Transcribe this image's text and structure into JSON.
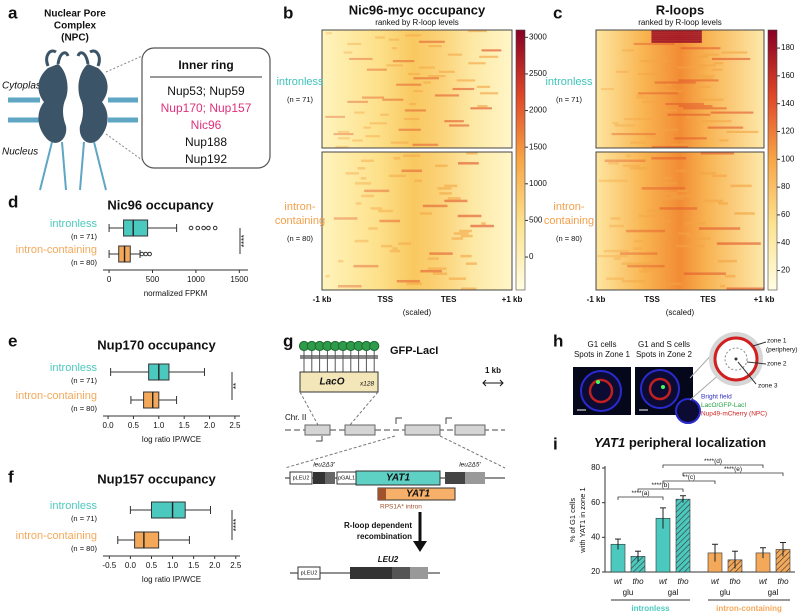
{
  "panel_labels": [
    "a",
    "b",
    "c",
    "d",
    "e",
    "f",
    "g",
    "h",
    "i"
  ],
  "npc": {
    "title_lines": [
      "Nuclear Pore",
      "Complex",
      "(NPC)"
    ],
    "cytoplasm": "Cytoplasm",
    "nucleus": "Nucleus",
    "box_title": "Inner ring",
    "items": [
      {
        "text": "Nup53; Nup59",
        "color": "#111111"
      },
      {
        "text": "Nup170; Nup157",
        "color": "#e0307a"
      },
      {
        "text": "Nic96",
        "color": "#e0307a"
      },
      {
        "text": "Nup188",
        "color": "#111111"
      },
      {
        "text": "Nup192",
        "color": "#111111"
      }
    ]
  },
  "chart_data": [
    {
      "type": "heatmap",
      "title": "Nic96-myc occupancy",
      "subtitle": "ranked by R-loop levels",
      "groups": [
        {
          "label_lines": [
            "intronless"
          ],
          "n": "(n = 71)",
          "color": "#3fc4ba"
        },
        {
          "label_lines": [
            "intron-",
            "containing"
          ],
          "n": "(n = 80)",
          "color": "#f2a04a"
        }
      ],
      "x_labels": [
        "-1 kb",
        "TSS",
        "TES",
        "+1 kb"
      ],
      "x_note": "(scaled)",
      "clim": [
        -450,
        3100
      ],
      "cticks": [
        0,
        500,
        1000,
        1500,
        2000,
        2500,
        3000
      ]
    },
    {
      "type": "heatmap",
      "title": "R-loops",
      "subtitle": "ranked by R-loop levels",
      "groups": [
        {
          "label_lines": [
            "intronless"
          ],
          "n": "(n = 71)",
          "color": "#3fc4ba"
        },
        {
          "label_lines": [
            "intron-",
            "containing"
          ],
          "n": "(n = 80)",
          "color": "#f2a04a"
        }
      ],
      "x_labels": [
        "-1 kb",
        "TSS",
        "TES",
        "+1 kb"
      ],
      "x_note": "(scaled)",
      "clim": [
        6,
        193
      ],
      "cticks": [
        20,
        40,
        60,
        80,
        100,
        120,
        140,
        160,
        180
      ]
    },
    {
      "type": "box",
      "title": "Nic96 occupancy",
      "xlabel": "normalized FPKM",
      "categories": [
        "intronless",
        "intron-containing"
      ],
      "n_labels": [
        "(n = 71)",
        "(n = 80)"
      ],
      "colors": [
        "#4cc9bf",
        "#f4a95a"
      ],
      "boxes": [
        {
          "whislo": 0,
          "q1": 167,
          "med": 278,
          "q3": 444,
          "whishi": 778,
          "fliers": [
            944,
            1022,
            1089,
            1144,
            1222
          ]
        },
        {
          "whislo": 0,
          "q1": 111,
          "med": 178,
          "q3": 244,
          "whishi": 356,
          "fliers": [
            378,
            422,
            467
          ]
        }
      ],
      "xlim": [
        -70,
        1600
      ],
      "xticks": [
        0,
        500,
        1000,
        1500
      ],
      "significance": "****"
    },
    {
      "type": "box",
      "title": "Nup170 occupancy",
      "xlabel": "log ratio IP/WCE",
      "categories": [
        "intronless",
        "intron-containing"
      ],
      "n_labels": [
        "(n = 71)",
        "(n = 80)"
      ],
      "colors": [
        "#4cc9bf",
        "#f4a95a"
      ],
      "boxes": [
        {
          "whislo": 0.05,
          "q1": 0.8,
          "med": 1.0,
          "q3": 1.2,
          "whishi": 1.9,
          "fliers": []
        },
        {
          "whislo": 0.45,
          "q1": 0.7,
          "med": 0.88,
          "q3": 1.0,
          "whishi": 1.35,
          "fliers": []
        }
      ],
      "xlim": [
        -0.1,
        2.6
      ],
      "xticks": [
        {
          "value": 0,
          "label": "0.0"
        },
        0.5,
        {
          "value": 1,
          "label": "1.0"
        },
        1.5,
        {
          "value": 2,
          "label": "2.0"
        },
        2.5
      ],
      "significance": "**"
    },
    {
      "type": "box",
      "title": "Nup157 occupancy",
      "xlabel": "log ratio IP/WCE",
      "categories": [
        "intronless",
        "intron-containing"
      ],
      "n_labels": [
        "(n = 71)",
        "(n = 80)"
      ],
      "colors": [
        "#4cc9bf",
        "#f4a95a"
      ],
      "boxes": [
        {
          "whislo": 0.0,
          "q1": 0.5,
          "med": 1.0,
          "q3": 1.3,
          "whishi": 1.9,
          "fliers": []
        },
        {
          "whislo": -0.3,
          "q1": 0.1,
          "med": 0.32,
          "q3": 0.67,
          "whishi": 1.4,
          "fliers": []
        }
      ],
      "xlim": [
        -0.65,
        2.6
      ],
      "xticks": [
        -0.5,
        {
          "value": 0,
          "label": "0.0"
        },
        0.5,
        {
          "value": 1,
          "label": "1.0"
        },
        1.5,
        {
          "value": 2,
          "label": "2.0"
        },
        2.5
      ],
      "significance": "****"
    },
    {
      "type": "bar",
      "title_gene": "YAT1",
      "title": "peripheral localization",
      "ylabel_lines": [
        "% of G1 cells",
        "with YAT1 in zone 1"
      ],
      "categories": [
        "glu",
        "gal",
        "glu",
        "gal"
      ],
      "groups": [
        {
          "label": "intronless",
          "color": "#4cc9bf"
        },
        {
          "label": "intron-containing",
          "color": "#f4a95a"
        }
      ],
      "series": [
        {
          "name": "wt",
          "hatch": false,
          "values": [
            36,
            51,
            31,
            31
          ],
          "errors": [
            3,
            6,
            5,
            3
          ]
        },
        {
          "name": "tho",
          "hatch": true,
          "values": [
            29,
            62,
            27,
            33
          ],
          "errors": [
            3,
            2,
            5,
            4
          ]
        }
      ],
      "ylim": [
        20,
        80
      ],
      "yticks": [
        20,
        40,
        60,
        80
      ],
      "annotations": [
        "****(a)",
        "****(b)",
        "**(c)",
        "****(d)",
        "****(e)"
      ]
    }
  ],
  "construct": {
    "protein": "GFP-LacI",
    "laco": "LacO",
    "laco_copies": "x128",
    "scale": "1 kb",
    "chromosome": "Chr. II",
    "leu2_3": "leu2Δ3'",
    "pgal1": "pGAL1",
    "yat1": "YAT1",
    "leu2_5": "leu2Δ5'",
    "pleu2": "pLEU2",
    "yat1_intron": "YAT1",
    "intron": "RPS1A* intron",
    "arrow_lines": [
      "R-loop dependent",
      "recombination"
    ],
    "leu2": "LEU2",
    "pleu2_product": "pLEU2"
  },
  "microscopy": {
    "panels": [
      {
        "lines": [
          "G1 cells",
          "Spots in Zone 1"
        ]
      },
      {
        "lines": [
          "G1 and S cells",
          "Spots in Zone 2"
        ]
      }
    ],
    "zones": [
      "zone 1",
      "(periphery)",
      "zone 2",
      "zone 3"
    ],
    "legend": [
      {
        "text": "Bright field",
        "color": "#3030c0"
      },
      {
        "text": "LacO/GFP-LacI",
        "color": "#20a040"
      },
      {
        "text": "Nup49-mCherry (NPC)",
        "color": "#d02020"
      }
    ]
  }
}
